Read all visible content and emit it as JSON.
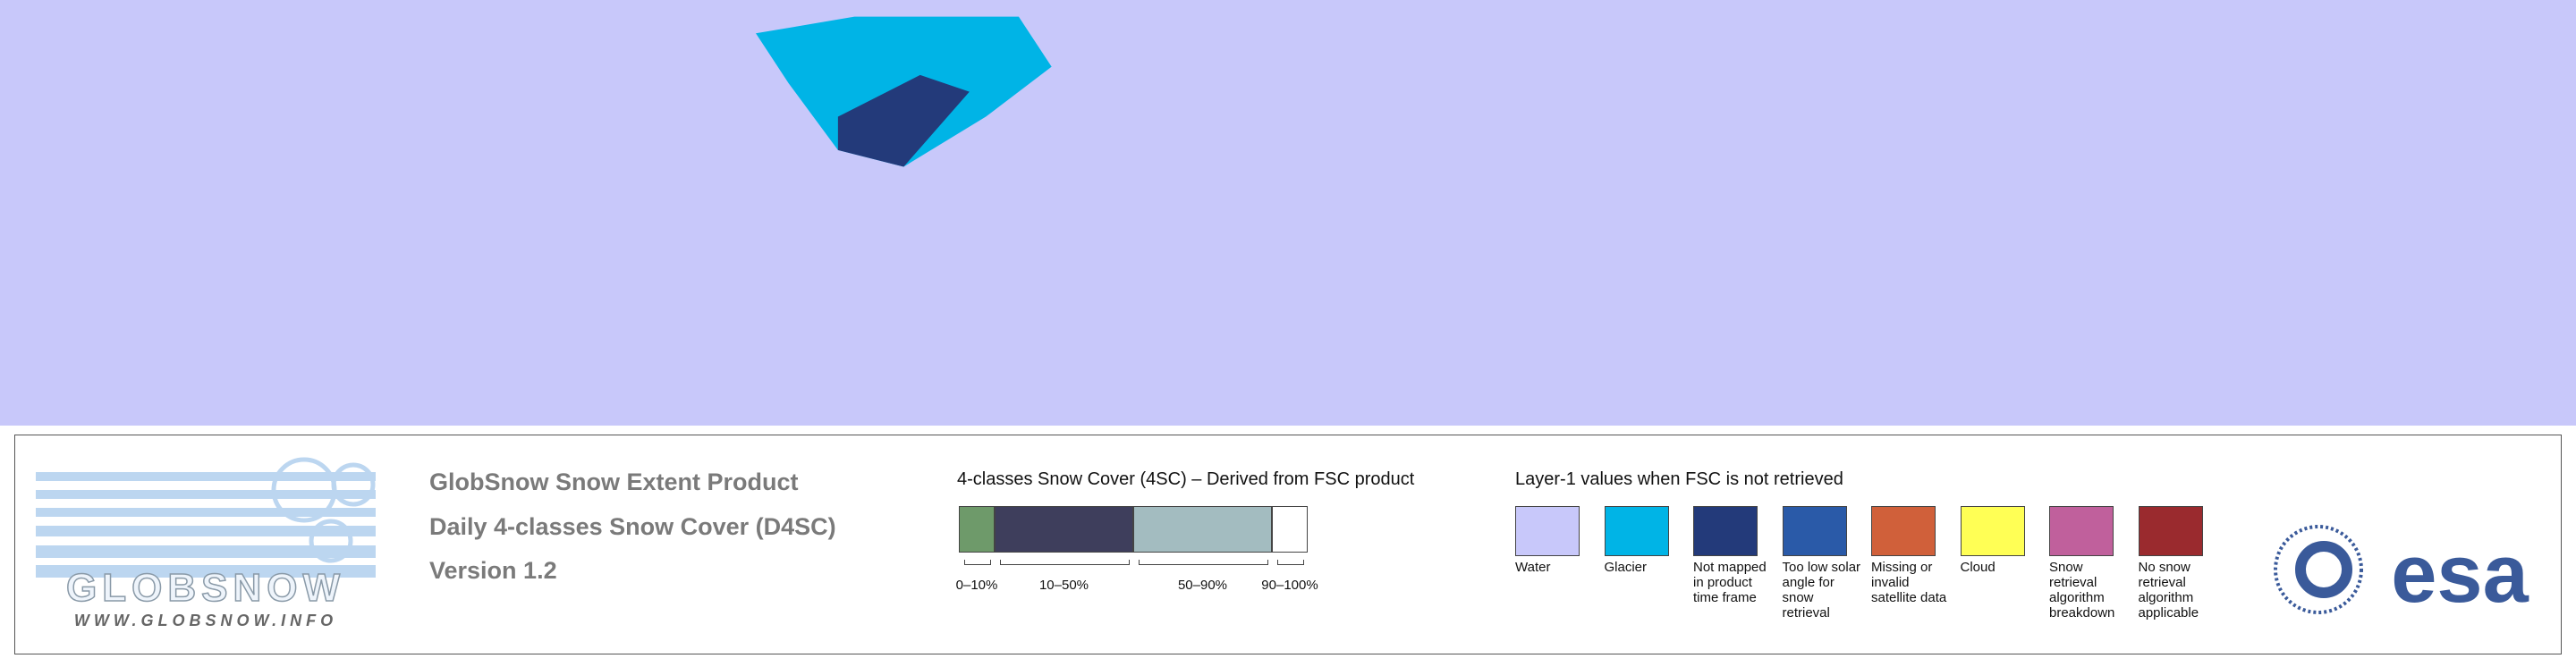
{
  "header": {
    "product": "GlobSnow Snow Extent Product",
    "subtitle": "Daily 4-classes Snow Cover (D4SC)",
    "version": "Version 1.2"
  },
  "logo": {
    "wordmark": "GLOBSNOW",
    "url": "WWW.GLOBSNOW.INFO"
  },
  "snow_cover_legend": {
    "title": "4-classes Snow Cover (4SC) – Derived from FSC product",
    "classes": [
      {
        "label": "0–10%",
        "color": "#6e9a6a"
      },
      {
        "label": "10–50%",
        "color": "#3e3e5c"
      },
      {
        "label": "50–90%",
        "color": "#a3bcc0"
      },
      {
        "label": "90–100%",
        "color": "#ffffff"
      }
    ]
  },
  "layer1_legend": {
    "title": "Layer-1 values when FSC is not retrieved",
    "items": [
      {
        "label": "Water",
        "color": "#c8c8fa"
      },
      {
        "label": "Glacier",
        "color": "#00b4e6"
      },
      {
        "label": "Not mapped in product time frame",
        "color": "#233a7a"
      },
      {
        "label": "Too low solar angle for snow retrieval",
        "color": "#2a5aa8"
      },
      {
        "label": "Missing or invalid satellite data",
        "color": "#d0603a"
      },
      {
        "label": "Cloud",
        "color": "#ffff55"
      },
      {
        "label": "Snow retrieval algorithm breakdown",
        "color": "#c0609c"
      },
      {
        "label": "No snow retrieval algorithm applicable",
        "color": "#9a2a2e"
      }
    ]
  },
  "agency": "esa"
}
